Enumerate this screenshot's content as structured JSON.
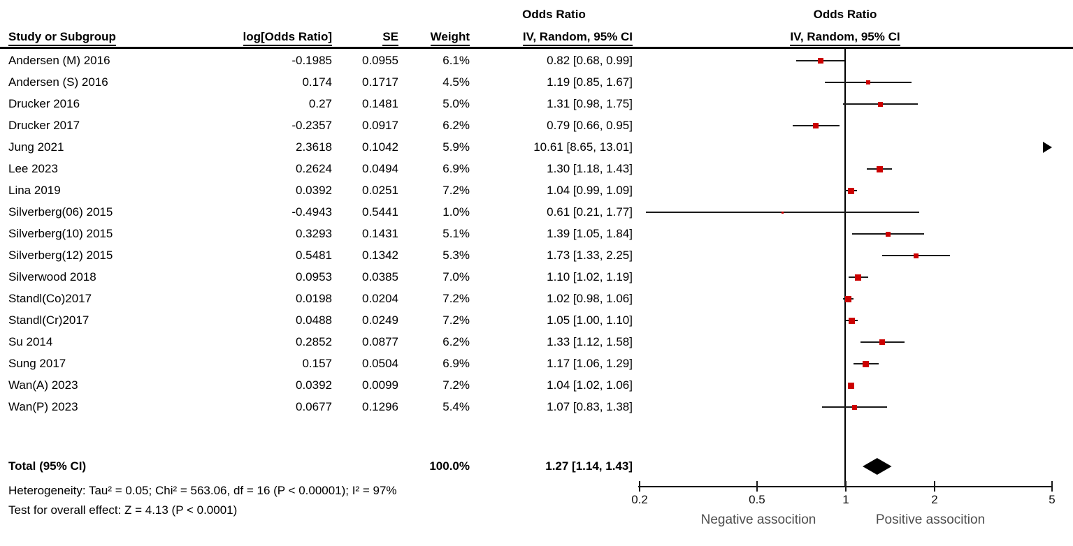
{
  "header": {
    "col_effect_title": "Odds Ratio",
    "plot_title": "Odds Ratio",
    "study": "Study or Subgroup",
    "log_or": "log[Odds Ratio]",
    "se": "SE",
    "weight": "Weight",
    "ci_method": "IV, Random, 95% CI",
    "plot_ci_method": "IV, Random, 95% CI"
  },
  "chart_data": {
    "type": "scatter",
    "subtype": "forest_plot_meta_analysis",
    "effect_measure": "Odds Ratio",
    "model": "IV, Random, 95% CI",
    "x_scale": "log",
    "x_ticks": [
      "0.2",
      "0.5",
      "1",
      "2",
      "5"
    ],
    "x_range": [
      0.2,
      5
    ],
    "null_line": 1,
    "studies": [
      {
        "name": "Andersen (M) 2016",
        "log_or": "-0.1985",
        "se": "0.0955",
        "weight": "6.1%",
        "weight_value": 6.1,
        "ci_text": "0.82 [0.68, 0.99]",
        "or": 0.82,
        "ci_low": 0.68,
        "ci_high": 0.99
      },
      {
        "name": "Andersen (S) 2016",
        "log_or": "0.174",
        "se": "0.1717",
        "weight": "4.5%",
        "weight_value": 4.5,
        "ci_text": "1.19 [0.85, 1.67]",
        "or": 1.19,
        "ci_low": 0.85,
        "ci_high": 1.67
      },
      {
        "name": "Drucker 2016",
        "log_or": "0.27",
        "se": "0.1481",
        "weight": "5.0%",
        "weight_value": 5.0,
        "ci_text": "1.31 [0.98, 1.75]",
        "or": 1.31,
        "ci_low": 0.98,
        "ci_high": 1.75
      },
      {
        "name": "Drucker 2017",
        "log_or": "-0.2357",
        "se": "0.0917",
        "weight": "6.2%",
        "weight_value": 6.2,
        "ci_text": "0.79 [0.66, 0.95]",
        "or": 0.79,
        "ci_low": 0.66,
        "ci_high": 0.95
      },
      {
        "name": "Jung 2021",
        "log_or": "2.3618",
        "se": "0.1042",
        "weight": "5.9%",
        "weight_value": 5.9,
        "ci_text": "10.61 [8.65, 13.01]",
        "or": 10.61,
        "ci_low": 8.65,
        "ci_high": 13.01
      },
      {
        "name": "Lee 2023",
        "log_or": "0.2624",
        "se": "0.0494",
        "weight": "6.9%",
        "weight_value": 6.9,
        "ci_text": "1.30 [1.18, 1.43]",
        "or": 1.3,
        "ci_low": 1.18,
        "ci_high": 1.43
      },
      {
        "name": "Lina 2019",
        "log_or": "0.0392",
        "se": "0.0251",
        "weight": "7.2%",
        "weight_value": 7.2,
        "ci_text": "1.04 [0.99, 1.09]",
        "or": 1.04,
        "ci_low": 0.99,
        "ci_high": 1.09
      },
      {
        "name": "Silverberg(06) 2015",
        "log_or": "-0.4943",
        "se": "0.5441",
        "weight": "1.0%",
        "weight_value": 1.0,
        "ci_text": "0.61 [0.21, 1.77]",
        "or": 0.61,
        "ci_low": 0.21,
        "ci_high": 1.77
      },
      {
        "name": "Silverberg(10) 2015",
        "log_or": "0.3293",
        "se": "0.1431",
        "weight": "5.1%",
        "weight_value": 5.1,
        "ci_text": "1.39 [1.05, 1.84]",
        "or": 1.39,
        "ci_low": 1.05,
        "ci_high": 1.84
      },
      {
        "name": "Silverberg(12) 2015",
        "log_or": "0.5481",
        "se": "0.1342",
        "weight": "5.3%",
        "weight_value": 5.3,
        "ci_text": "1.73 [1.33, 2.25]",
        "or": 1.73,
        "ci_low": 1.33,
        "ci_high": 2.25
      },
      {
        "name": "Silverwood 2018",
        "log_or": "0.0953",
        "se": "0.0385",
        "weight": "7.0%",
        "weight_value": 7.0,
        "ci_text": "1.10 [1.02, 1.19]",
        "or": 1.1,
        "ci_low": 1.02,
        "ci_high": 1.19
      },
      {
        "name": "Standl(Co)2017",
        "log_or": "0.0198",
        "se": "0.0204",
        "weight": "7.2%",
        "weight_value": 7.2,
        "ci_text": "1.02 [0.98, 1.06]",
        "or": 1.02,
        "ci_low": 0.98,
        "ci_high": 1.06
      },
      {
        "name": "Standl(Cr)2017",
        "log_or": "0.0488",
        "se": "0.0249",
        "weight": "7.2%",
        "weight_value": 7.2,
        "ci_text": "1.05 [1.00, 1.10]",
        "or": 1.05,
        "ci_low": 1.0,
        "ci_high": 1.1
      },
      {
        "name": "Su 2014",
        "log_or": "0.2852",
        "se": "0.0877",
        "weight": "6.2%",
        "weight_value": 6.2,
        "ci_text": "1.33 [1.12, 1.58]",
        "or": 1.33,
        "ci_low": 1.12,
        "ci_high": 1.58
      },
      {
        "name": "Sung 2017",
        "log_or": "0.157",
        "se": "0.0504",
        "weight": "6.9%",
        "weight_value": 6.9,
        "ci_text": "1.17 [1.06, 1.29]",
        "or": 1.17,
        "ci_low": 1.06,
        "ci_high": 1.29
      },
      {
        "name": "Wan(A) 2023",
        "log_or": "0.0392",
        "se": "0.0099",
        "weight": "7.2%",
        "weight_value": 7.2,
        "ci_text": "1.04 [1.02, 1.06]",
        "or": 1.04,
        "ci_low": 1.02,
        "ci_high": 1.06
      },
      {
        "name": "Wan(P) 2023",
        "log_or": "0.0677",
        "se": "0.1296",
        "weight": "5.4%",
        "weight_value": 5.4,
        "ci_text": "1.07 [0.83, 1.38]",
        "or": 1.07,
        "ci_low": 0.83,
        "ci_high": 1.38
      }
    ],
    "total": {
      "label": "Total (95% CI)",
      "weight": "100.0%",
      "ci_text": "1.27 [1.14, 1.43]",
      "or": 1.27,
      "ci_low": 1.14,
      "ci_high": 1.43
    }
  },
  "footer": {
    "heterogeneity": "Heterogeneity: Tau² = 0.05; Chi² = 563.06, df = 16 (P < 0.00001); I² = 97%",
    "overall_effect": "Test for overall effect: Z = 4.13 (P < 0.0001)",
    "axis_label_left": "Negative assocition",
    "axis_label_right": "Positive assocition"
  },
  "colors": {
    "marker_red": "#cc0000",
    "line_black": "#1a1a1a",
    "diamond_black": "#000000"
  }
}
